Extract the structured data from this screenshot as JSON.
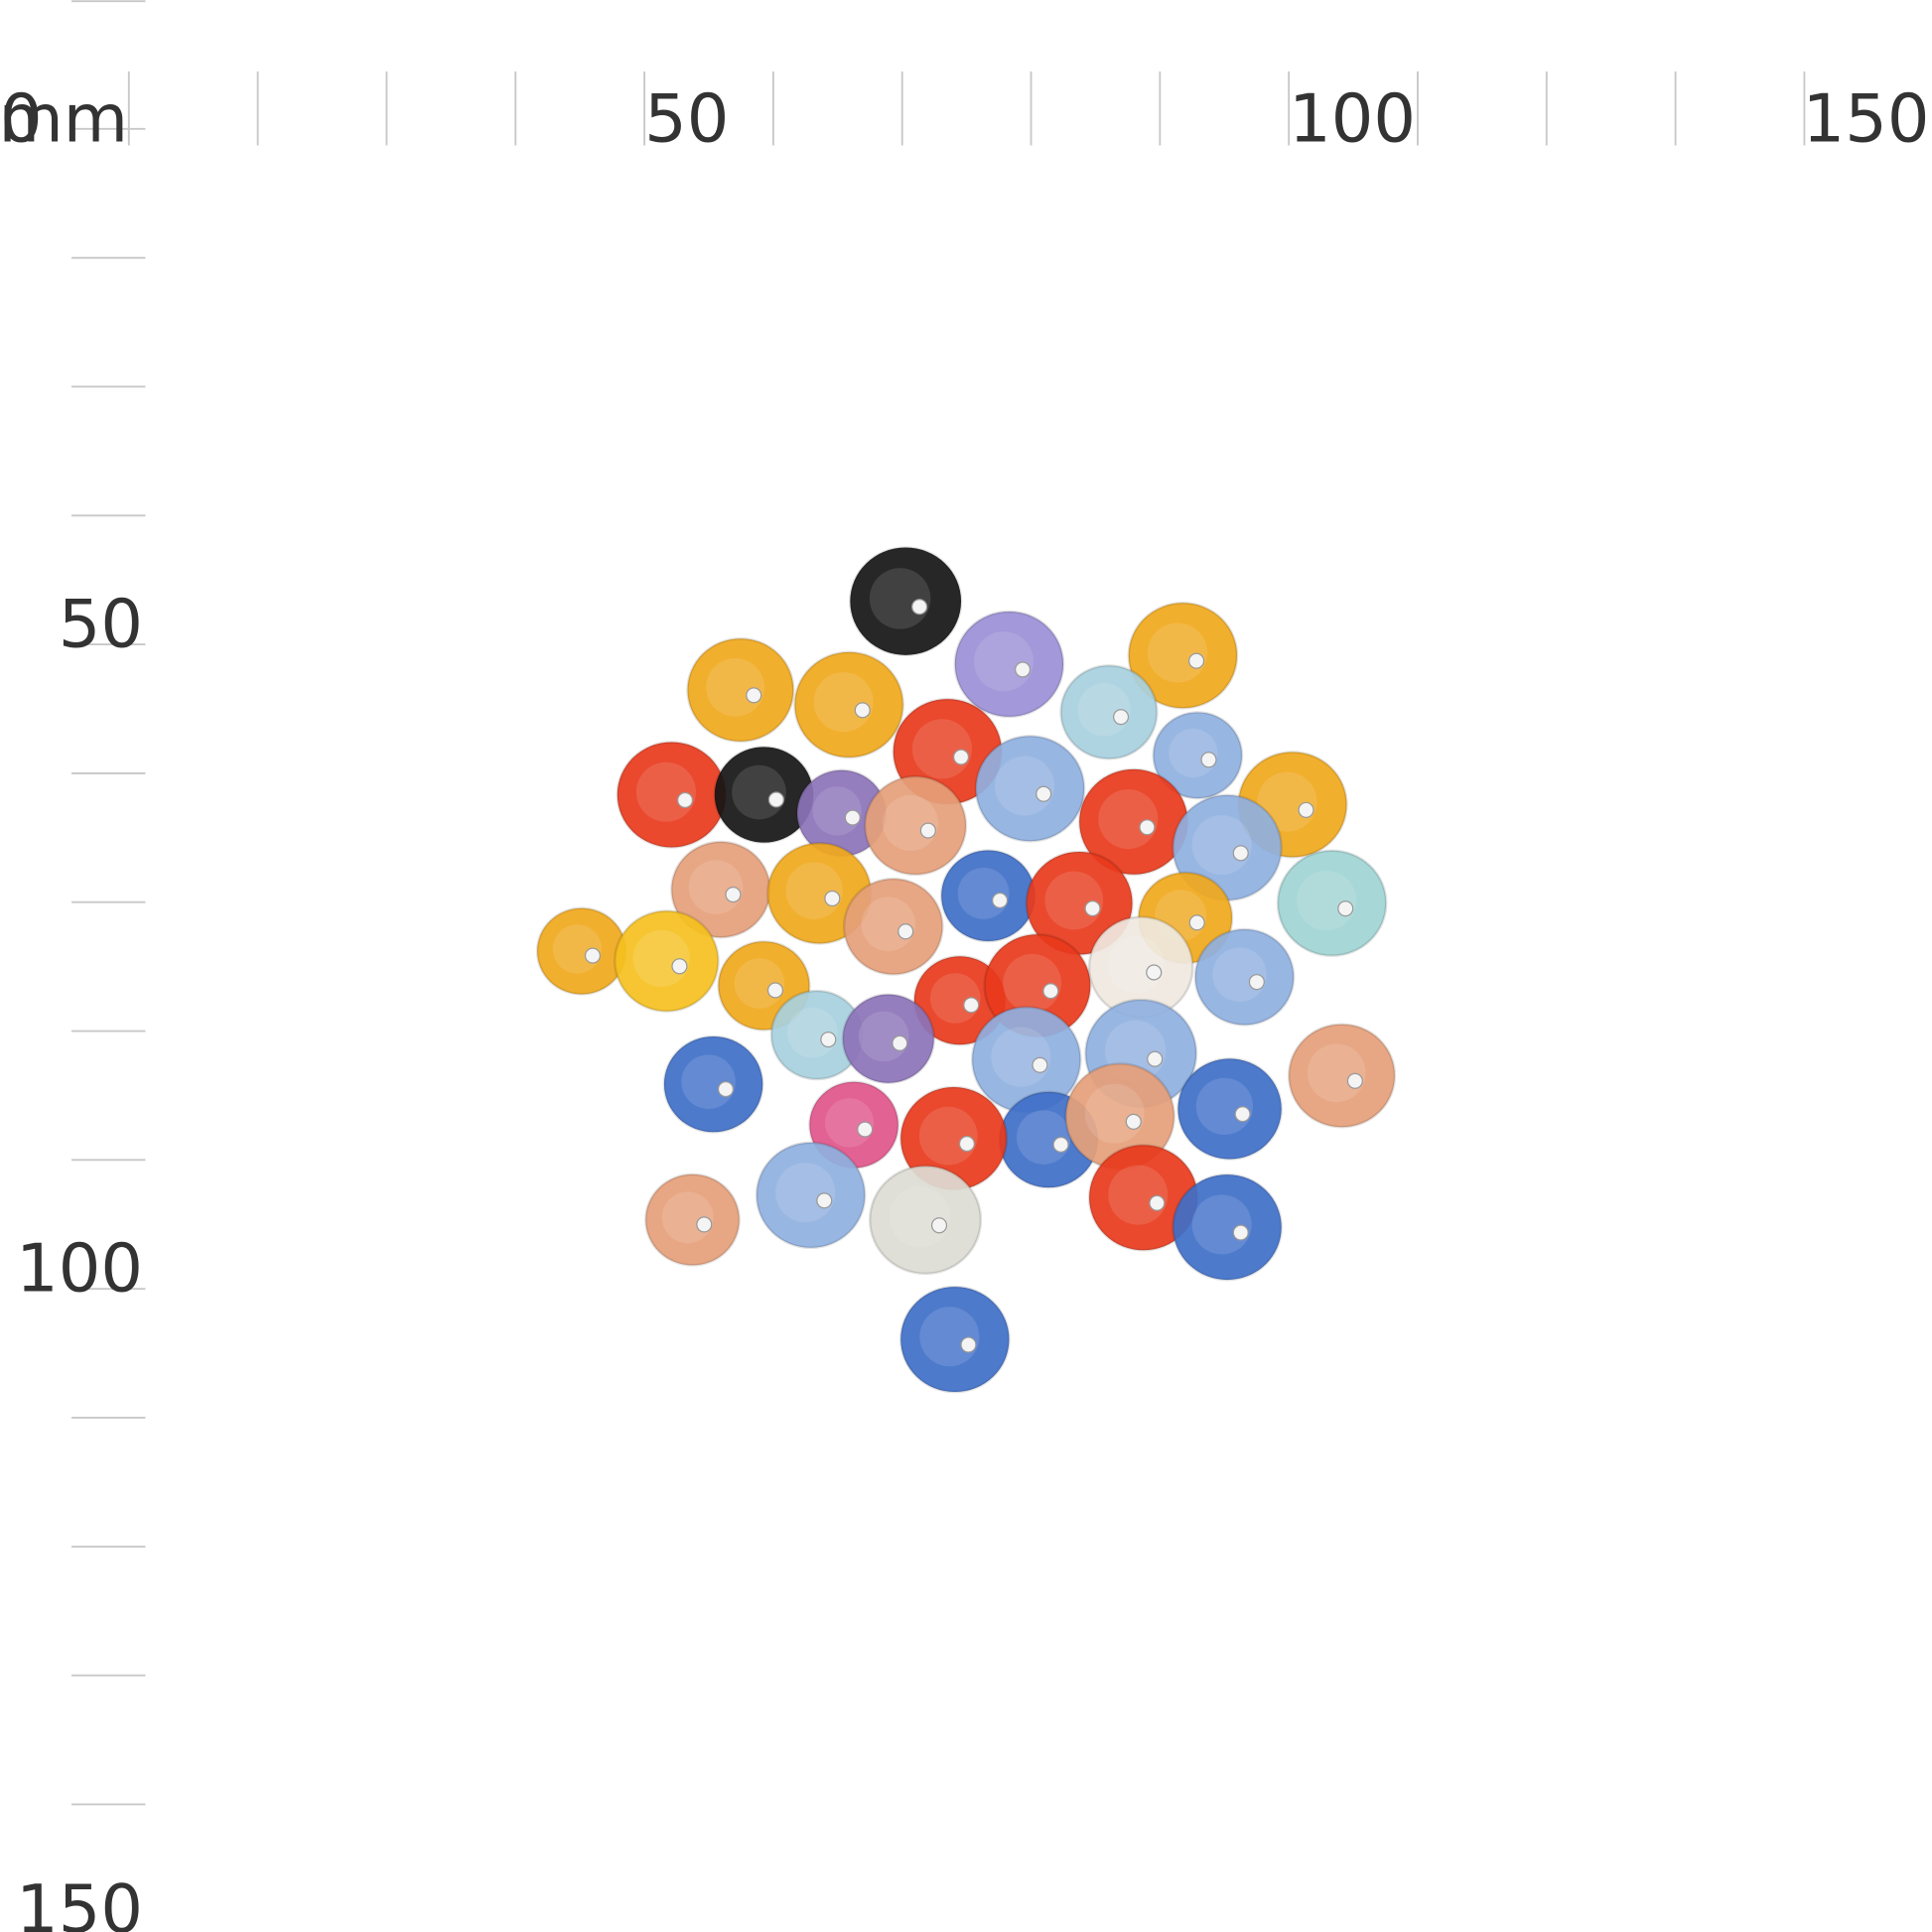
{
  "ruler": {
    "unit": "mm",
    "top_labels": [
      "0",
      "50",
      "100",
      "150"
    ],
    "left_labels": [
      "50",
      "100",
      "150"
    ]
  }
}
